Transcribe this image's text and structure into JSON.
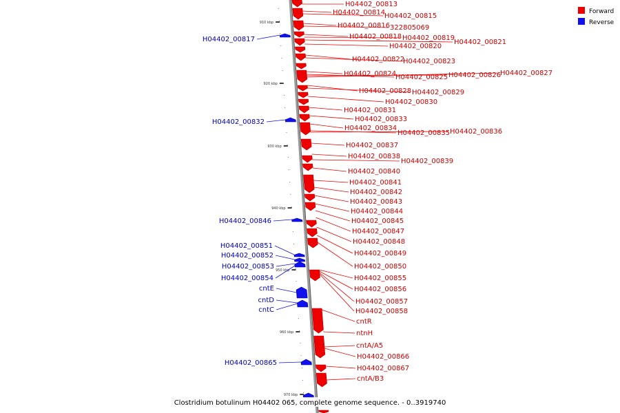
{
  "caption": "Clostridium botulinum H04402 065, complete genome sequence. - 0..3919740",
  "legend": [
    {
      "label": "Forward",
      "color": "#ee0000"
    },
    {
      "label": "Reverse",
      "color": "#1111ee"
    }
  ],
  "colors": {
    "forward": "#ee0000",
    "reverse": "#1111ee",
    "backbone": "#999999"
  },
  "ticks": [
    "910 kbp",
    "920 kbp",
    "930 kbp",
    "940 kbp",
    "950 kbp",
    "960 kbp",
    "970 kbp"
  ],
  "forward_labels": [
    "H04402_00813",
    "H04402_00814",
    "H04402_00815",
    "H04402_00816",
    "322805069",
    "H04402_00818",
    "H04402_00819",
    "H04402_00821",
    "H04402_00820",
    "H04402_00822",
    "H04402_00823",
    "H04402_00824",
    "H04402_00825",
    "H04402_00826",
    "H04402_00827",
    "H04402_00828",
    "H04402_00829",
    "H04402_00830",
    "H04402_00831",
    "H04402_00833",
    "H04402_00834",
    "H04402_00835",
    "H04402_00836",
    "H04402_00837",
    "H04402_00838",
    "H04402_00839",
    "H04402_00840",
    "H04402_00841",
    "H04402_00842",
    "H04402_00843",
    "H04402_00844",
    "H04402_00845",
    "H04402_00847",
    "H04402_00848",
    "H04402_00849",
    "H04402_00850",
    "H04402_00855",
    "H04402_00856",
    "H04402_00857",
    "H04402_00858",
    "cntR",
    "ntnH",
    "cntA/A5",
    "H04402_00866",
    "H04402_00867",
    "cntA/B3"
  ],
  "reverse_labels": [
    "H04402_00817",
    "H04402_00832",
    "H04402_00846",
    "H04402_00851",
    "H04402_00852",
    "H04402_00853",
    "H04402_00854",
    "cntE",
    "cntD",
    "cntC",
    "H04402_00865"
  ]
}
